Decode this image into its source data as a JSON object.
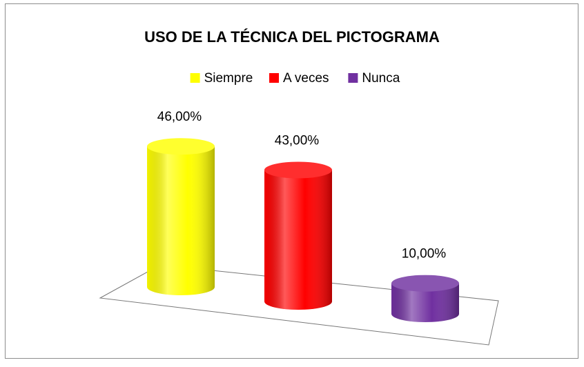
{
  "chart_data": {
    "type": "bar",
    "title": "USO DE LA TÉCNICA DEL PICTOGRAMA",
    "categories": [
      null
    ],
    "series": [
      {
        "name": "Siempre",
        "color": "#ffff00",
        "values": [
          46
        ],
        "value_labels": [
          "46,00%"
        ]
      },
      {
        "name": "A veces",
        "color": "#ff0000",
        "values": [
          43
        ],
        "value_labels": [
          "43,00%"
        ]
      },
      {
        "name": "Nunca",
        "color": "#7030a0",
        "values": [
          10
        ],
        "value_labels": [
          "10,00%"
        ]
      }
    ],
    "legend": "top"
  }
}
